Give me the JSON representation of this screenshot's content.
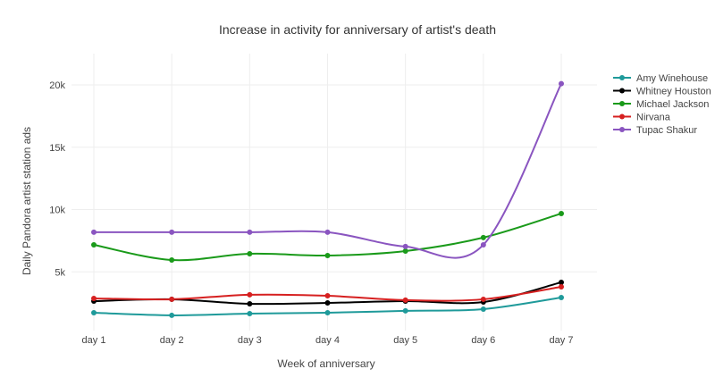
{
  "chart_data": {
    "type": "line",
    "title": "Increase in activity for anniversary of artist's death",
    "xlabel": "Week of anniversary",
    "ylabel": "Daily Pandora artist station ads",
    "categories": [
      "day 1",
      "day 2",
      "day 3",
      "day 4",
      "day 5",
      "day 6",
      "day 7"
    ],
    "ylim": [
      0,
      21000
    ],
    "yticks": [
      5000,
      10000,
      15000,
      20000
    ],
    "ytick_labels": [
      "5k",
      "10k",
      "15k",
      "20k"
    ],
    "grid": true,
    "legend_position": "top-right",
    "series": [
      {
        "name": "Amy Winehouse",
        "color": "#1f9a9a",
        "values": [
          1720,
          1510,
          1650,
          1720,
          1870,
          2010,
          2940
        ]
      },
      {
        "name": "Whitney Houston",
        "color": "#000000",
        "values": [
          2650,
          2800,
          2440,
          2510,
          2650,
          2580,
          4160
        ]
      },
      {
        "name": "Michael Jackson",
        "color": "#1a9a1a",
        "values": [
          7170,
          5950,
          6450,
          6310,
          6670,
          7750,
          9680
        ]
      },
      {
        "name": "Nirvana",
        "color": "#d62020",
        "values": [
          2870,
          2800,
          3160,
          3080,
          2730,
          2800,
          3800
        ]
      },
      {
        "name": "Tupac Shakur",
        "color": "#8a55c0",
        "values": [
          8180,
          8180,
          8180,
          8180,
          7030,
          7170,
          20100
        ]
      }
    ]
  }
}
